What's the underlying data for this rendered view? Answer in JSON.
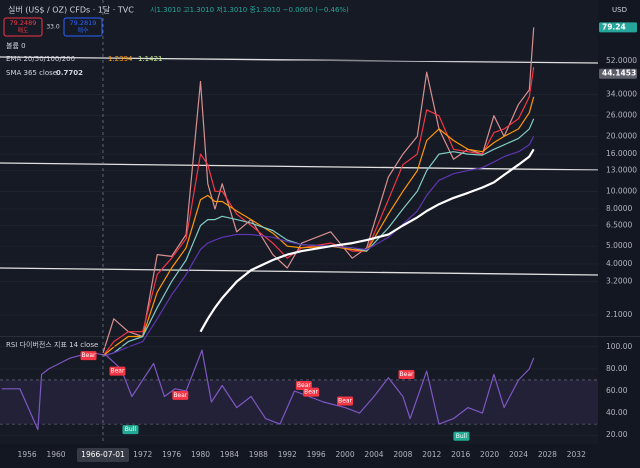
{
  "header": {
    "title": "실버 (US$ / OZ) CFDs · 1달 · TVC",
    "ohlc": "시1.3010 고1.3010 저1.3010 종1.3010 −0.0060 (−0.46%)",
    "sell_price": "79.2489",
    "sell_label": "매도",
    "spread": "33.0",
    "buy_price": "79.2819",
    "buy_label": "매수",
    "volume": "볼륨 0",
    "ema_legend": "EMA 20/50/100/200",
    "ema_values": [
      1.2394,
      1.1421
    ],
    "sma_legend": "SMA 365 close",
    "sma_value": 0.7702,
    "rsi_legend": "RSI 다이버전스 지표 14 close",
    "currency": "USD"
  },
  "chart_data": [
    {
      "type": "line",
      "log_scale": true,
      "xlim": [
        1952.25,
        2035
      ],
      "ylim": [
        1.63,
        112
      ],
      "yticks": [
        {
          "value": 52,
          "label": "52.0000"
        },
        {
          "value": 34,
          "label": "34.0000"
        },
        {
          "value": 26,
          "label": "26.0000"
        },
        {
          "value": 20,
          "label": "20.0000"
        },
        {
          "value": 16,
          "label": "16.0000"
        },
        {
          "value": 13,
          "label": "13.0000"
        },
        {
          "value": 10,
          "label": "10.0000"
        },
        {
          "value": 8,
          "label": "8.0000"
        },
        {
          "value": 6.5,
          "label": "6.5000"
        },
        {
          "value": 5,
          "label": "5.0000"
        },
        {
          "value": 4,
          "label": "4.0000"
        },
        {
          "value": 3.2,
          "label": "3.2000"
        },
        {
          "value": 2.1,
          "label": "2.1000"
        }
      ],
      "grid": true,
      "price_tags": [
        {
          "value": 79.24,
          "color": "#26a69a"
        },
        {
          "value": 44.1453,
          "color": "#5d606b"
        }
      ],
      "x": [
        1966.5,
        1968,
        1970,
        1972,
        1974,
        1976,
        1978,
        1980,
        1981,
        1982,
        1983,
        1985,
        1987,
        1990,
        1992,
        1994,
        1998,
        2001,
        2003,
        2006,
        2008,
        2010,
        2011.3,
        2013,
        2015,
        2017,
        2019,
        2020.6,
        2022,
        2024,
        2025.5,
        2026.1
      ],
      "series": [
        {
          "color": "#d98f8f",
          "values": [
            1.3,
            2.0,
            1.7,
            1.6,
            4.5,
            4.4,
            5.8,
            40,
            11,
            8,
            11,
            6,
            7,
            4.5,
            3.8,
            5.2,
            6,
            4.3,
            4.9,
            12,
            16,
            20,
            45,
            22,
            15,
            17,
            16,
            26,
            20,
            30,
            36,
            79.24
          ]
        },
        {
          "color": "#f23645",
          "values": [
            1.25,
            1.5,
            1.7,
            1.7,
            3.5,
            4.3,
            5.5,
            16,
            14,
            10,
            10,
            7.5,
            6.5,
            5.2,
            4.3,
            4.9,
            5.2,
            4.7,
            4.7,
            9,
            14,
            16,
            28,
            26,
            17,
            16.5,
            16,
            21,
            22,
            25,
            33,
            48
          ]
        },
        {
          "color": "#ff9800",
          "values": [
            1.25,
            1.4,
            1.6,
            1.6,
            2.8,
            3.8,
            4.9,
            9,
            9.5,
            8.8,
            8.8,
            7.8,
            7,
            5.9,
            5.0,
            4.9,
            5.0,
            4.8,
            4.7,
            7.5,
            10,
            13,
            19,
            22,
            19,
            17,
            16.5,
            18.5,
            20,
            22,
            27,
            33
          ]
        },
        {
          "color": "#80cbc4",
          "values": [
            1.25,
            1.3,
            1.5,
            1.6,
            2.3,
            3.2,
            4.2,
            6.5,
            7,
            7,
            7.3,
            7,
            6.7,
            6.1,
            5.4,
            5.1,
            5.0,
            4.9,
            4.7,
            6.3,
            8,
            10,
            13,
            16,
            16.5,
            16,
            15.8,
            17,
            18,
            19.5,
            22,
            25
          ]
        },
        {
          "color": "#5e35b1",
          "values": [
            1.25,
            1.3,
            1.4,
            1.5,
            2.0,
            2.7,
            3.5,
            4.8,
            5.2,
            5.4,
            5.6,
            5.8,
            5.8,
            5.6,
            5.3,
            5.1,
            5.0,
            4.9,
            4.8,
            5.6,
            6.6,
            7.8,
            9.5,
            11.5,
            12.5,
            13,
            13.5,
            14.5,
            15.5,
            16.5,
            18,
            20
          ]
        },
        {
          "name": "SMA 365 close",
          "color": "#ffffff",
          "values": [
            null,
            null,
            null,
            null,
            null,
            null,
            null,
            1.7,
            2.0,
            2.3,
            2.6,
            3.2,
            3.7,
            4.2,
            4.5,
            4.7,
            5.0,
            5.2,
            5.4,
            5.8,
            6.5,
            7.2,
            7.8,
            8.5,
            9.2,
            9.8,
            10.5,
            11.2,
            12.3,
            14,
            15.5,
            17
          ]
        }
      ]
    },
    {
      "type": "line",
      "xlim": [
        1952.25,
        2035
      ],
      "ylim": [
        12,
        108
      ],
      "yticks": [
        {
          "value": 100,
          "label": "100.00"
        },
        {
          "value": 80,
          "label": "80.00"
        },
        {
          "value": 60,
          "label": "60.00"
        },
        {
          "value": 40,
          "label": "40.00"
        },
        {
          "value": 20,
          "label": "20.00"
        }
      ],
      "band": [
        30,
        70
      ],
      "xticks": [
        1956,
        1960,
        1972,
        1976,
        1980,
        1984,
        1988,
        1992,
        1996,
        2000,
        2004,
        2008,
        2012,
        2016,
        2020,
        2024,
        2028,
        2032
      ],
      "crosshair_x": 1966.5,
      "crosshair_label": "1966-07-01",
      "x": [
        1952.5,
        1955,
        1957.5,
        1958,
        1959,
        1962,
        1965,
        1967,
        1969,
        1970.5,
        1972,
        1973.5,
        1975,
        1976.5,
        1978,
        1979.5,
        1980.2,
        1981.5,
        1983,
        1985,
        1987,
        1989,
        1991,
        1993,
        1995,
        1997,
        2000,
        2002,
        2004,
        2006,
        2008,
        2009,
        2011.3,
        2013,
        2015,
        2017,
        2019,
        2020.6,
        2022,
        2024,
        2025.5,
        2026.1
      ],
      "series": [
        {
          "color": "#7e57c2",
          "values": [
            62,
            62,
            25,
            75,
            80,
            90,
            95,
            92,
            80,
            55,
            70,
            85,
            55,
            62,
            60,
            85,
            97,
            50,
            65,
            45,
            55,
            35,
            30,
            60,
            55,
            50,
            45,
            40,
            55,
            72,
            55,
            35,
            78,
            30,
            35,
            45,
            40,
            75,
            45,
            70,
            80,
            90
          ]
        }
      ],
      "annotations": [
        {
          "text": "Bear",
          "x": 1964.5,
          "y": 92,
          "color": "#f23645"
        },
        {
          "text": "Bear",
          "x": 1968.5,
          "y": 78,
          "color": "#f23645"
        },
        {
          "text": "Bull",
          "x": 1970.3,
          "y": 25,
          "color": "#22ab94"
        },
        {
          "text": "Bear",
          "x": 1977.2,
          "y": 56,
          "color": "#f23645"
        },
        {
          "text": "Bear",
          "x": 1994.3,
          "y": 65,
          "color": "#f23645"
        },
        {
          "text": "Bear",
          "x": 1995.3,
          "y": 59,
          "color": "#f23645"
        },
        {
          "text": "Bear",
          "x": 2000,
          "y": 51,
          "color": "#f23645"
        },
        {
          "text": "Bear",
          "x": 2008.5,
          "y": 75,
          "color": "#f23645"
        },
        {
          "text": "Bull",
          "x": 2016.1,
          "y": 19,
          "color": "#22ab94"
        }
      ]
    }
  ]
}
